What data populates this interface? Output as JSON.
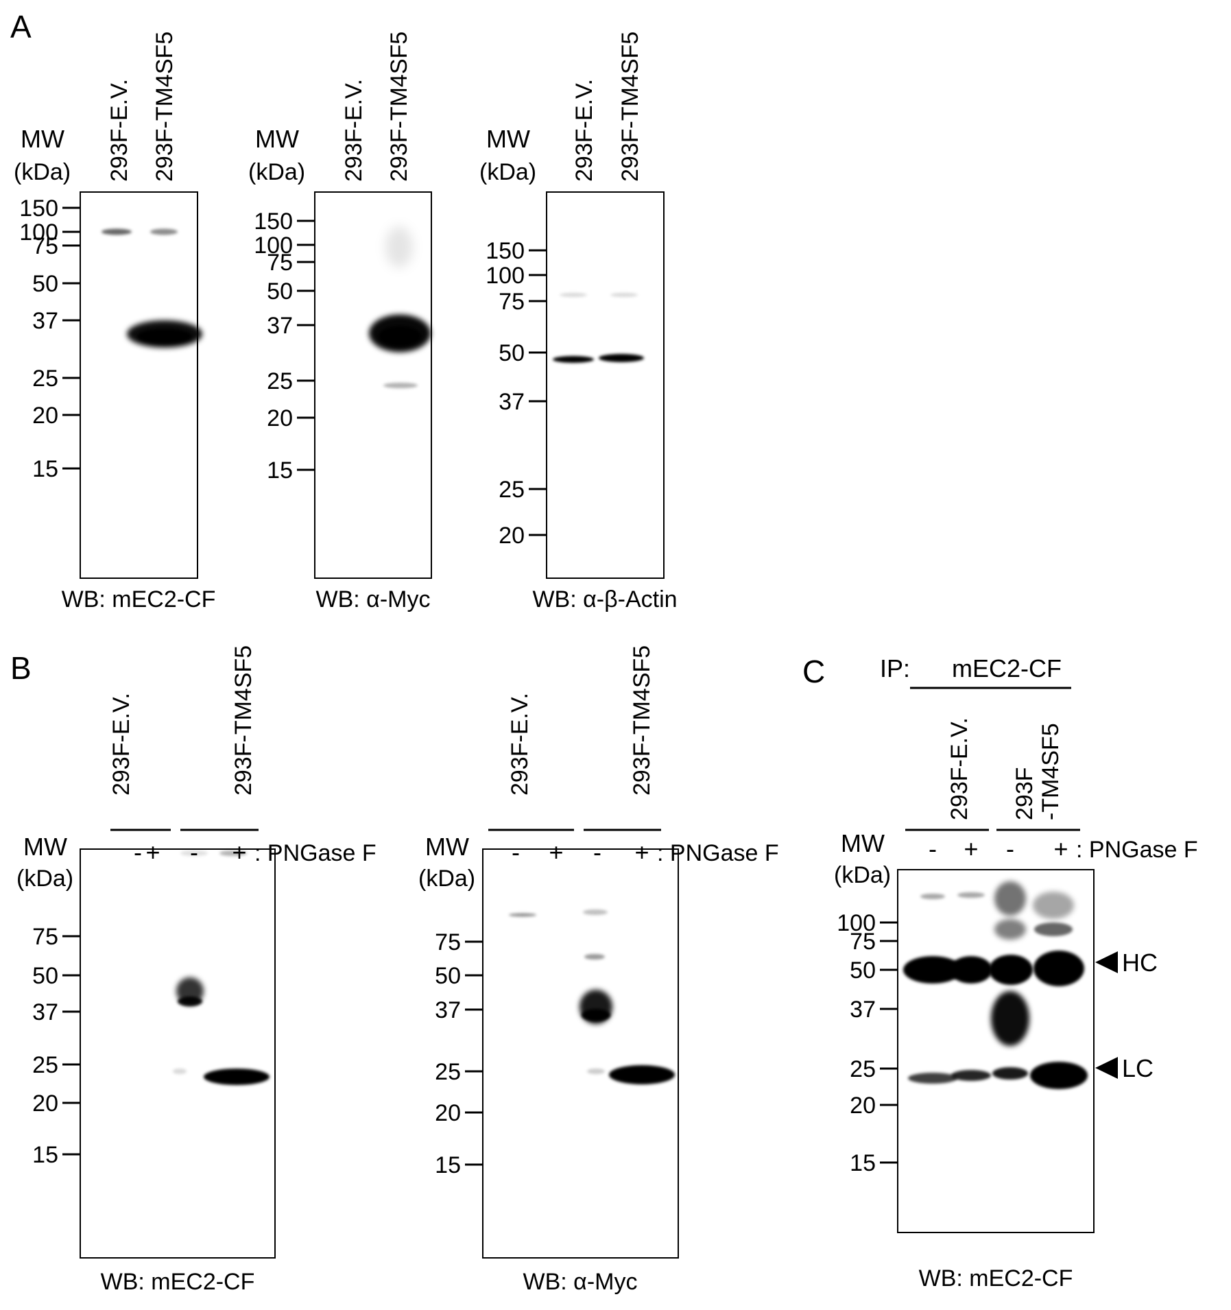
{
  "figure": {
    "panels": [
      {
        "id": "A1",
        "letter": "A",
        "mw_label": "MW",
        "unit_label": "(kDa)",
        "lane_labels": [
          "293F-E.V.",
          "293F-TM4SF5"
        ],
        "markers": [
          "150",
          "100",
          "75",
          "50",
          "37",
          "25",
          "20",
          "15"
        ],
        "treatment_signs": [],
        "treatment_label": "",
        "caption": "WB: mEC2-CF"
      },
      {
        "id": "A2",
        "letter": "",
        "mw_label": "MW",
        "unit_label": "(kDa)",
        "lane_labels": [
          "293F-E.V.",
          "293F-TM4SF5"
        ],
        "markers": [
          "150",
          "100",
          "75",
          "50",
          "37",
          "25",
          "20",
          "15"
        ],
        "treatment_signs": [],
        "treatment_label": "",
        "caption": "WB: α-Myc"
      },
      {
        "id": "A3",
        "letter": "",
        "mw_label": "MW",
        "unit_label": "(kDa)",
        "lane_labels": [
          "293F-E.V.",
          "293F-TM4SF5"
        ],
        "markers": [
          "150",
          "100",
          "75",
          "50",
          "37",
          "25",
          "20"
        ],
        "treatment_signs": [],
        "treatment_label": "",
        "caption": "WB: α-β-Actin"
      },
      {
        "id": "B1",
        "letter": "B",
        "mw_label": "MW",
        "unit_label": "(kDa)",
        "lane_labels": [
          "293F-E.V.",
          "293F-TM4SF5"
        ],
        "markers": [
          "75",
          "50",
          "37",
          "25",
          "20",
          "15"
        ],
        "treatment_signs": [
          "-",
          "+",
          "-",
          "+"
        ],
        "treatment_label": ": PNGase F",
        "caption": "WB: mEC2-CF"
      },
      {
        "id": "B2",
        "letter": "",
        "mw_label": "MW",
        "unit_label": "(kDa)",
        "lane_labels": [
          "293F-E.V.",
          "293F-TM4SF5"
        ],
        "markers": [
          "75",
          "50",
          "37",
          "25",
          "20",
          "15"
        ],
        "treatment_signs": [
          "-",
          "+",
          "-",
          "+"
        ],
        "treatment_label": ": PNGase F",
        "caption": "WB: α-Myc"
      },
      {
        "id": "C1",
        "letter": "C",
        "mw_label": "MW",
        "unit_label": "(kDa)",
        "lane_labels": [
          "293F-E.V.",
          "293F\n-TM4SF5"
        ],
        "markers": [
          "100",
          "75",
          "50",
          "37",
          "25",
          "20",
          "15"
        ],
        "treatment_signs": [
          "-",
          "+",
          "-",
          "+"
        ],
        "treatment_label": ": PNGase F",
        "caption": "WB: mEC2-CF",
        "ip_label": "IP:",
        "ip_antibody": "mEC2-CF",
        "arrow_labels": [
          "HC",
          "LC"
        ]
      }
    ]
  }
}
